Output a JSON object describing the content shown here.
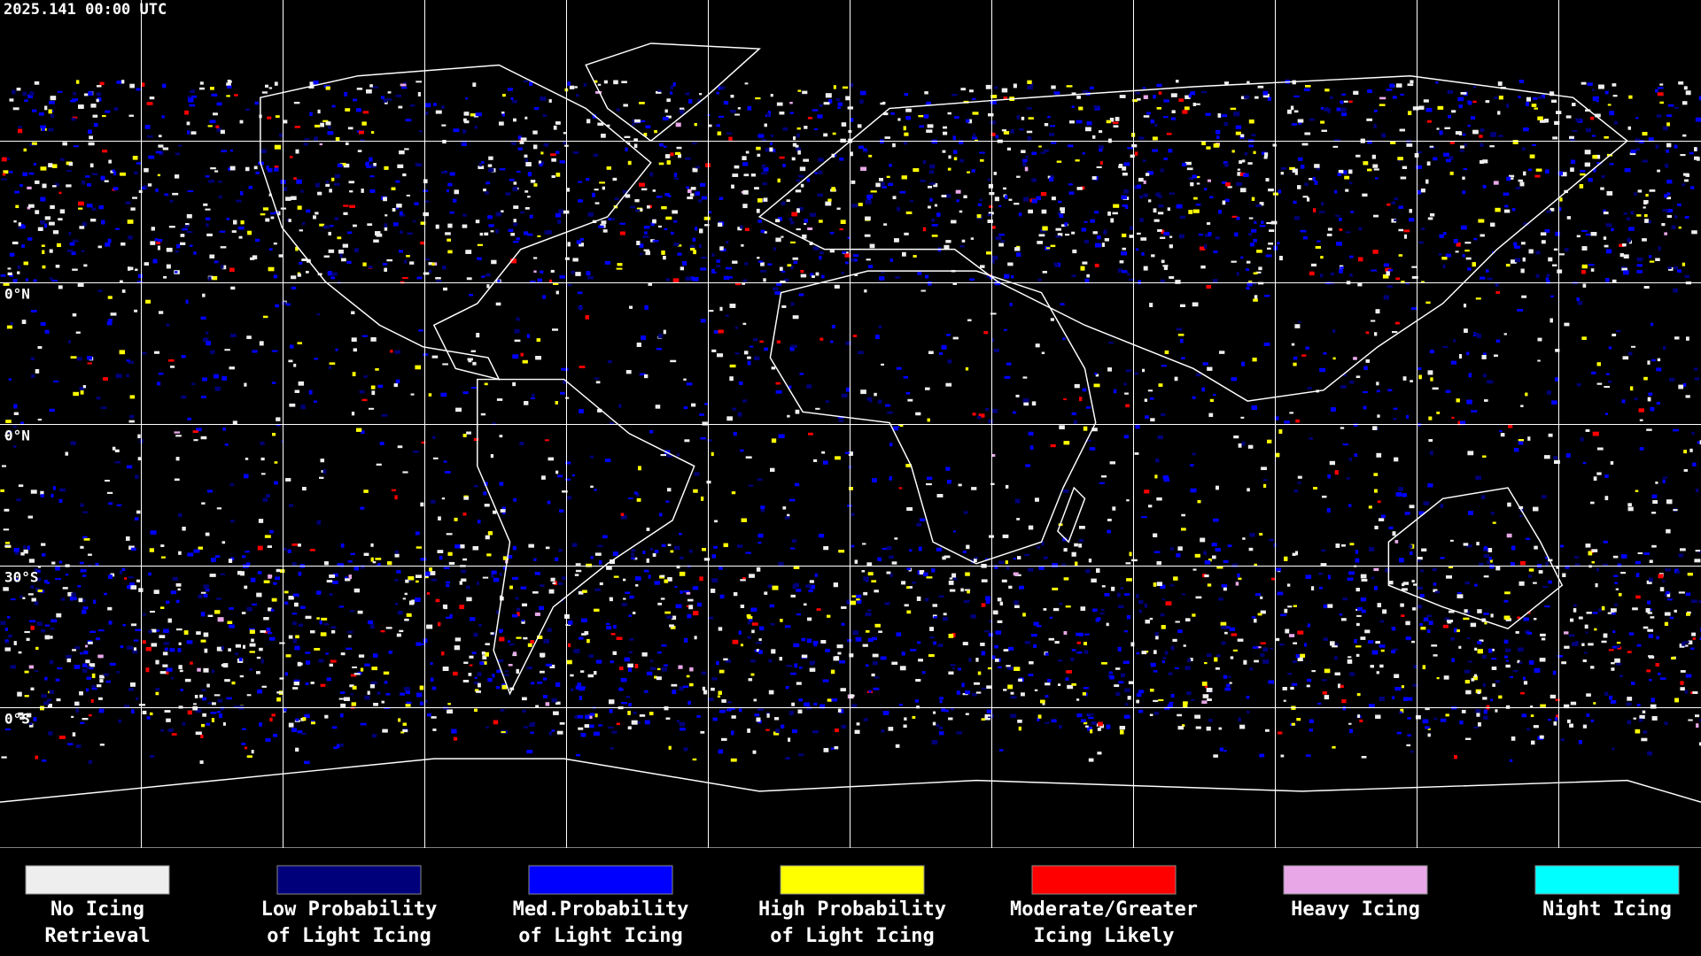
{
  "header": {
    "timestamp": "2025.141 00:00 UTC"
  },
  "map": {
    "latitude_labels": [
      "0°N",
      "0°N",
      "30°S",
      "0°S"
    ]
  },
  "legend": {
    "items": [
      {
        "label": [
          "No Icing",
          "Retrieval"
        ],
        "color": "#eeeeee"
      },
      {
        "label": [
          "Low Probability",
          "of Light Icing"
        ],
        "color": "#00007a"
      },
      {
        "label": [
          "Med.Probability",
          "of Light Icing"
        ],
        "color": "#0000ff"
      },
      {
        "label": [
          "High Probability",
          "of Light Icing"
        ],
        "color": "#ffff00"
      },
      {
        "label": [
          "Moderate/Greater",
          "Icing Likely"
        ],
        "color": "#ff0000"
      },
      {
        "label": [
          "Heavy Icing"
        ],
        "color": "#e8a8e8"
      },
      {
        "label": [
          "Night Icing"
        ],
        "color": "#00ffff"
      }
    ]
  }
}
